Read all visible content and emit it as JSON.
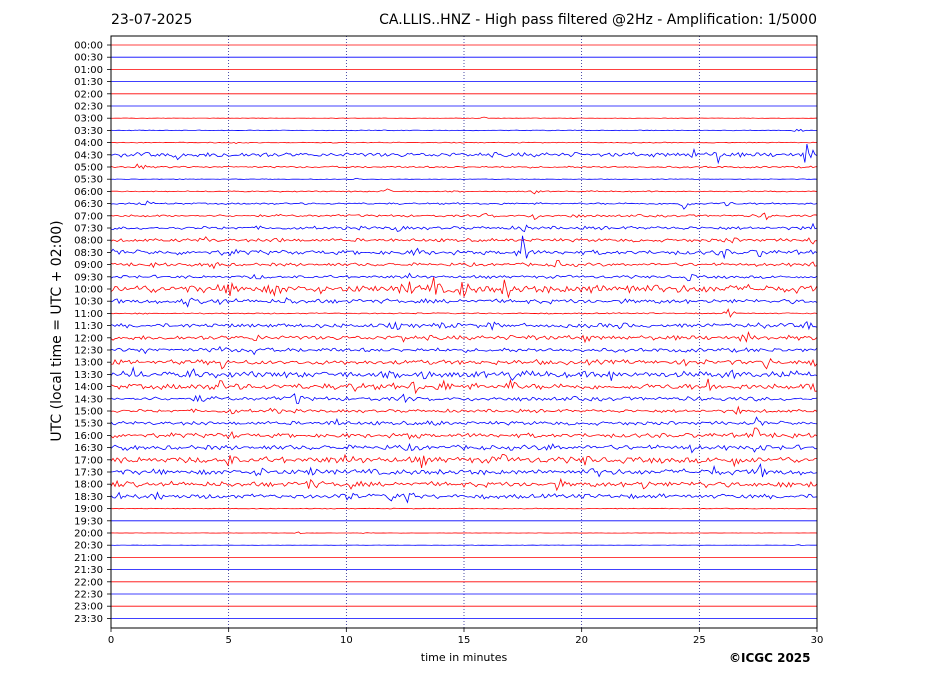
{
  "header": {
    "date": "23-07-2025",
    "title": "CA.LLIS..HNZ - High pass filtered @2Hz - Amplification: 1/5000"
  },
  "footer": {
    "credit": "©ICGC 2025"
  },
  "chart_data": {
    "type": "line",
    "xlabel": "time in minutes",
    "ylabel": "UTC (local time = UTC + 02:00)",
    "xlim": [
      0,
      30
    ],
    "x_ticks": [
      0,
      5,
      10,
      15,
      20,
      25,
      30
    ],
    "x_tick_labels": [
      "0",
      "5",
      "10",
      "15",
      "20",
      "25",
      "30"
    ],
    "vertical_gridlines": [
      5,
      10,
      15,
      20,
      25
    ],
    "series_colors": [
      "#ff0000",
      "#0000ff"
    ],
    "rows": [
      {
        "label": "00:00",
        "color": "#ff0000",
        "activity": 0.0,
        "events": []
      },
      {
        "label": "00:30",
        "color": "#0000ff",
        "activity": 0.0,
        "events": []
      },
      {
        "label": "01:00",
        "color": "#ff0000",
        "activity": 0.0,
        "events": []
      },
      {
        "label": "01:30",
        "color": "#0000ff",
        "activity": 0.0,
        "events": []
      },
      {
        "label": "02:00",
        "color": "#ff0000",
        "activity": 0.0,
        "events": []
      },
      {
        "label": "02:30",
        "color": "#0000ff",
        "activity": 0.0,
        "events": []
      },
      {
        "label": "03:00",
        "color": "#ff0000",
        "activity": 0.03,
        "events": [
          [
            15.8,
            0.2
          ]
        ]
      },
      {
        "label": "03:30",
        "color": "#0000ff",
        "activity": 0.05,
        "events": [
          [
            29.2,
            0.3
          ]
        ]
      },
      {
        "label": "04:00",
        "color": "#ff0000",
        "activity": 0.06,
        "events": [
          [
            5.4,
            0.2
          ]
        ]
      },
      {
        "label": "04:30",
        "color": "#0000ff",
        "activity": 0.3,
        "events": [
          [
            2.9,
            0.5
          ],
          [
            4.7,
            0.3
          ],
          [
            6.3,
            0.3
          ],
          [
            24.8,
            0.6
          ],
          [
            25.8,
            0.7
          ],
          [
            29.6,
            1.5
          ]
        ]
      },
      {
        "label": "05:00",
        "color": "#ff0000",
        "activity": 0.12,
        "events": [
          [
            1.2,
            0.6
          ]
        ]
      },
      {
        "label": "05:30",
        "color": "#0000ff",
        "activity": 0.04,
        "events": [
          [
            10.4,
            0.2
          ]
        ]
      },
      {
        "label": "06:00",
        "color": "#ff0000",
        "activity": 0.08,
        "events": [
          [
            11.7,
            0.4
          ],
          [
            18.0,
            0.3
          ]
        ]
      },
      {
        "label": "06:30",
        "color": "#0000ff",
        "activity": 0.12,
        "events": [
          [
            1.5,
            0.3
          ],
          [
            24.4,
            1.0
          ],
          [
            26.2,
            0.5
          ]
        ]
      },
      {
        "label": "07:00",
        "color": "#ff0000",
        "activity": 0.16,
        "events": [
          [
            16.0,
            0.4
          ],
          [
            18.0,
            0.4
          ],
          [
            19.7,
            0.4
          ],
          [
            27.8,
            0.5
          ]
        ]
      },
      {
        "label": "07:30",
        "color": "#0000ff",
        "activity": 0.22,
        "events": [
          [
            12.2,
            0.4
          ],
          [
            17.6,
            0.5
          ],
          [
            29.8,
            0.6
          ]
        ]
      },
      {
        "label": "08:00",
        "color": "#ff0000",
        "activity": 0.22,
        "events": [
          [
            4.0,
            0.4
          ],
          [
            7.2,
            0.4
          ],
          [
            26.3,
            0.6
          ],
          [
            29.8,
            0.5
          ]
        ]
      },
      {
        "label": "08:30",
        "color": "#0000ff",
        "activity": 0.3,
        "events": [
          [
            0.2,
            0.5
          ],
          [
            5.0,
            0.6
          ],
          [
            13.1,
            0.7
          ],
          [
            17.5,
            2.2
          ],
          [
            26.0,
            0.6
          ],
          [
            27.6,
            0.5
          ]
        ]
      },
      {
        "label": "09:00",
        "color": "#ff0000",
        "activity": 0.22,
        "events": [
          [
            1.8,
            0.5
          ],
          [
            4.4,
            0.6
          ],
          [
            19.0,
            0.5
          ],
          [
            29.9,
            0.6
          ]
        ]
      },
      {
        "label": "09:30",
        "color": "#0000ff",
        "activity": 0.2,
        "events": [
          [
            6.2,
            0.4
          ],
          [
            12.7,
            0.5
          ],
          [
            24.6,
            0.5
          ]
        ]
      },
      {
        "label": "10:00",
        "color": "#ff0000",
        "activity": 0.55,
        "events": [
          [
            5.2,
            1.5
          ],
          [
            7.0,
            0.8
          ],
          [
            12.6,
            1.2
          ],
          [
            13.7,
            1.0
          ],
          [
            15.0,
            1.2
          ],
          [
            16.8,
            1.4
          ],
          [
            20.5,
            0.8
          ],
          [
            22.0,
            0.8
          ]
        ]
      },
      {
        "label": "10:30",
        "color": "#0000ff",
        "activity": 0.3,
        "events": [
          [
            3.2,
            0.7
          ],
          [
            4.6,
            0.5
          ],
          [
            7.6,
            0.5
          ]
        ]
      },
      {
        "label": "11:00",
        "color": "#ff0000",
        "activity": 0.08,
        "events": [
          [
            26.3,
            0.7
          ]
        ]
      },
      {
        "label": "11:30",
        "color": "#0000ff",
        "activity": 0.28,
        "events": [
          [
            12.1,
            0.5
          ],
          [
            14.1,
            0.6
          ],
          [
            16.2,
            0.6
          ],
          [
            21.7,
            0.6
          ],
          [
            27.5,
            0.5
          ],
          [
            29.6,
            0.6
          ]
        ]
      },
      {
        "label": "12:00",
        "color": "#ff0000",
        "activity": 0.3,
        "events": [
          [
            6.2,
            0.5
          ],
          [
            12.4,
            0.5
          ],
          [
            17.8,
            0.5
          ],
          [
            20.1,
            0.6
          ],
          [
            27.0,
            0.7
          ]
        ]
      },
      {
        "label": "12:30",
        "color": "#0000ff",
        "activity": 0.28,
        "events": [
          [
            1.4,
            0.5
          ],
          [
            4.7,
            0.6
          ],
          [
            6.1,
            0.6
          ],
          [
            29.8,
            0.6
          ]
        ]
      },
      {
        "label": "13:00",
        "color": "#ff0000",
        "activity": 0.32,
        "events": [
          [
            4.7,
            0.8
          ],
          [
            24.5,
            0.6
          ],
          [
            27.9,
            0.9
          ],
          [
            29.9,
            0.8
          ]
        ]
      },
      {
        "label": "13:30",
        "color": "#0000ff",
        "activity": 0.42,
        "events": [
          [
            0.9,
            0.9
          ],
          [
            3.5,
            0.6
          ],
          [
            13.3,
            0.8
          ],
          [
            17.0,
            0.8
          ],
          [
            21.2,
            0.7
          ],
          [
            26.4,
            0.6
          ]
        ]
      },
      {
        "label": "14:00",
        "color": "#ff0000",
        "activity": 0.4,
        "events": [
          [
            4.6,
            1.0
          ],
          [
            10.4,
            0.6
          ],
          [
            12.9,
            0.9
          ],
          [
            14.2,
            0.8
          ],
          [
            17.0,
            1.0
          ],
          [
            25.4,
            0.8
          ],
          [
            29.9,
            0.8
          ]
        ]
      },
      {
        "label": "14:30",
        "color": "#0000ff",
        "activity": 0.28,
        "events": [
          [
            3.8,
            0.6
          ],
          [
            7.9,
            0.9
          ],
          [
            12.5,
            0.5
          ]
        ]
      },
      {
        "label": "15:00",
        "color": "#ff0000",
        "activity": 0.22,
        "events": [
          [
            5.1,
            0.5
          ],
          [
            6.9,
            0.5
          ],
          [
            26.7,
            0.5
          ]
        ]
      },
      {
        "label": "15:30",
        "color": "#0000ff",
        "activity": 0.25,
        "events": [
          [
            9.6,
            0.6
          ],
          [
            13.8,
            0.5
          ],
          [
            27.5,
            1.1
          ]
        ]
      },
      {
        "label": "16:00",
        "color": "#ff0000",
        "activity": 0.3,
        "events": [
          [
            5.1,
            0.5
          ],
          [
            12.8,
            0.6
          ],
          [
            27.4,
            1.0
          ],
          [
            29.0,
            0.5
          ]
        ]
      },
      {
        "label": "16:30",
        "color": "#0000ff",
        "activity": 0.32,
        "events": [
          [
            0.4,
            0.5
          ],
          [
            12.9,
            0.5
          ],
          [
            18.7,
            0.6
          ],
          [
            24.6,
            0.6
          ],
          [
            27.5,
            0.8
          ]
        ]
      },
      {
        "label": "17:00",
        "color": "#ff0000",
        "activity": 0.42,
        "events": [
          [
            5.0,
            0.8
          ],
          [
            10.0,
            0.9
          ],
          [
            13.2,
            0.6
          ],
          [
            16.6,
            0.6
          ],
          [
            20.2,
            0.6
          ],
          [
            26.5,
            0.7
          ]
        ]
      },
      {
        "label": "17:30",
        "color": "#0000ff",
        "activity": 0.38,
        "events": [
          [
            6.5,
            0.7
          ],
          [
            8.6,
            0.7
          ],
          [
            20.7,
            0.6
          ],
          [
            25.6,
            0.6
          ],
          [
            27.6,
            0.6
          ]
        ]
      },
      {
        "label": "18:00",
        "color": "#ff0000",
        "activity": 0.35,
        "events": [
          [
            0.2,
            0.5
          ],
          [
            8.5,
            0.8
          ],
          [
            10.1,
            0.8
          ],
          [
            19.0,
            0.7
          ],
          [
            22.6,
            0.7
          ],
          [
            25.2,
            0.6
          ],
          [
            29.8,
            0.7
          ]
        ]
      },
      {
        "label": "18:30",
        "color": "#0000ff",
        "activity": 0.3,
        "events": [
          [
            0.3,
            0.6
          ],
          [
            1.9,
            0.6
          ],
          [
            10.0,
            0.9
          ],
          [
            12.0,
            0.8
          ],
          [
            12.6,
            0.8
          ]
        ]
      },
      {
        "label": "19:00",
        "color": "#ff0000",
        "activity": 0.05,
        "events": []
      },
      {
        "label": "19:30",
        "color": "#0000ff",
        "activity": 0.0,
        "events": []
      },
      {
        "label": "20:00",
        "color": "#ff0000",
        "activity": 0.02,
        "events": [
          [
            8.0,
            0.15
          ],
          [
            10.8,
            0.15
          ]
        ]
      },
      {
        "label": "20:30",
        "color": "#0000ff",
        "activity": 0.02,
        "events": [
          [
            29.2,
            0.15
          ]
        ]
      },
      {
        "label": "21:00",
        "color": "#ff0000",
        "activity": 0.0,
        "events": []
      },
      {
        "label": "21:30",
        "color": "#0000ff",
        "activity": 0.0,
        "events": []
      },
      {
        "label": "22:00",
        "color": "#ff0000",
        "activity": 0.0,
        "events": []
      },
      {
        "label": "22:30",
        "color": "#0000ff",
        "activity": 0.0,
        "events": []
      },
      {
        "label": "23:00",
        "color": "#ff0000",
        "activity": 0.0,
        "events": []
      },
      {
        "label": "23:30",
        "color": "#0000ff",
        "activity": 0.0,
        "events": []
      }
    ]
  }
}
